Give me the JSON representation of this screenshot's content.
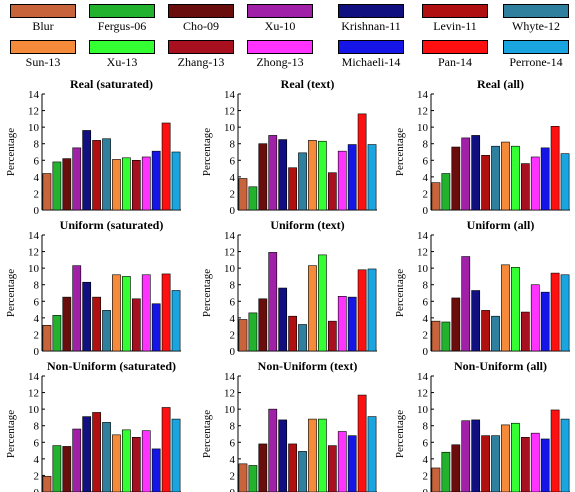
{
  "chart_data": {
    "type": "bar",
    "categories": [
      "Blur",
      "Fergus-06",
      "Cho-09",
      "Xu-10",
      "Krishnan-11",
      "Levin-11",
      "Whyte-12",
      "Sun-13",
      "Xu-13",
      "Zhang-13",
      "Zhong-13",
      "Michaeli-14",
      "Pan-14",
      "Perrone-14"
    ],
    "colors": [
      "#c8643c",
      "#22b22e",
      "#6a0d0d",
      "#a020a8",
      "#101080",
      "#b01010",
      "#2f7f9f",
      "#f58a3a",
      "#33ff33",
      "#a81020",
      "#ff33ff",
      "#1515e8",
      "#ff1010",
      "#1aa5e0"
    ],
    "legend": [
      {
        "label": "Blur",
        "color": "#c8643c"
      },
      {
        "label": "Fergus-06",
        "color": "#22b22e"
      },
      {
        "label": "Cho-09",
        "color": "#6a0d0d"
      },
      {
        "label": "Xu-10",
        "color": "#a020a8"
      },
      {
        "label": "Krishnan-11",
        "color": "#101080"
      },
      {
        "label": "Levin-11",
        "color": "#b01010"
      },
      {
        "label": "Whyte-12",
        "color": "#2f7f9f"
      },
      {
        "label": "Sun-13",
        "color": "#f58a3a"
      },
      {
        "label": "Xu-13",
        "color": "#33ff33"
      },
      {
        "label": "Zhang-13",
        "color": "#a81020"
      },
      {
        "label": "Zhong-13",
        "color": "#ff33ff"
      },
      {
        "label": "Michaeli-14",
        "color": "#1515e8"
      },
      {
        "label": "Pan-14",
        "color": "#ff1010"
      },
      {
        "label": "Perrone-14",
        "color": "#1aa5e0"
      }
    ],
    "ylabel": "Percentage",
    "ylim": [
      0,
      14
    ],
    "yticks": [
      "0",
      "2",
      "4",
      "6",
      "8",
      "10",
      "12",
      "14"
    ],
    "panels": [
      {
        "title": "Real (saturated)",
        "values": [
          4.4,
          5.8,
          6.2,
          7.5,
          9.6,
          8.4,
          8.6,
          6.1,
          6.3,
          6.0,
          6.4,
          7.1,
          10.5,
          7.0
        ]
      },
      {
        "title": "Real (text)",
        "values": [
          3.8,
          2.8,
          8.0,
          9.0,
          8.5,
          5.1,
          6.9,
          8.4,
          8.3,
          4.5,
          7.1,
          7.9,
          11.6,
          7.9
        ]
      },
      {
        "title": "Real (all)",
        "values": [
          3.3,
          4.4,
          7.6,
          8.7,
          9.0,
          6.6,
          7.7,
          8.2,
          7.7,
          5.6,
          6.4,
          7.5,
          10.1,
          6.8
        ]
      },
      {
        "title": "Uniform (saturated)",
        "values": [
          3.1,
          4.3,
          6.5,
          10.3,
          8.3,
          6.5,
          4.9,
          9.2,
          9.0,
          6.3,
          9.2,
          5.7,
          9.3,
          7.3
        ]
      },
      {
        "title": "Uniform (text)",
        "values": [
          3.8,
          4.6,
          6.3,
          11.9,
          7.6,
          4.2,
          3.2,
          10.3,
          11.6,
          3.6,
          6.6,
          6.5,
          9.8,
          9.9
        ]
      },
      {
        "title": "Uniform (all)",
        "values": [
          3.6,
          3.5,
          6.4,
          11.4,
          7.3,
          4.9,
          4.2,
          10.4,
          10.1,
          4.7,
          8.0,
          7.1,
          9.4,
          9.2
        ]
      },
      {
        "title": "Non-Uniform (saturated)",
        "values": [
          1.9,
          5.6,
          5.5,
          7.6,
          9.1,
          9.6,
          8.4,
          6.9,
          7.5,
          6.6,
          7.4,
          5.2,
          10.2,
          8.8
        ]
      },
      {
        "title": "Non-Uniform (text)",
        "values": [
          3.4,
          3.2,
          5.8,
          10.0,
          8.7,
          5.8,
          4.9,
          8.8,
          8.8,
          5.6,
          7.3,
          6.8,
          11.7,
          9.1
        ]
      },
      {
        "title": "Non-Uniform (all)",
        "values": [
          2.9,
          4.8,
          5.7,
          8.6,
          8.7,
          6.8,
          6.8,
          8.1,
          8.3,
          6.6,
          7.1,
          6.4,
          9.9,
          8.8
        ]
      }
    ]
  }
}
